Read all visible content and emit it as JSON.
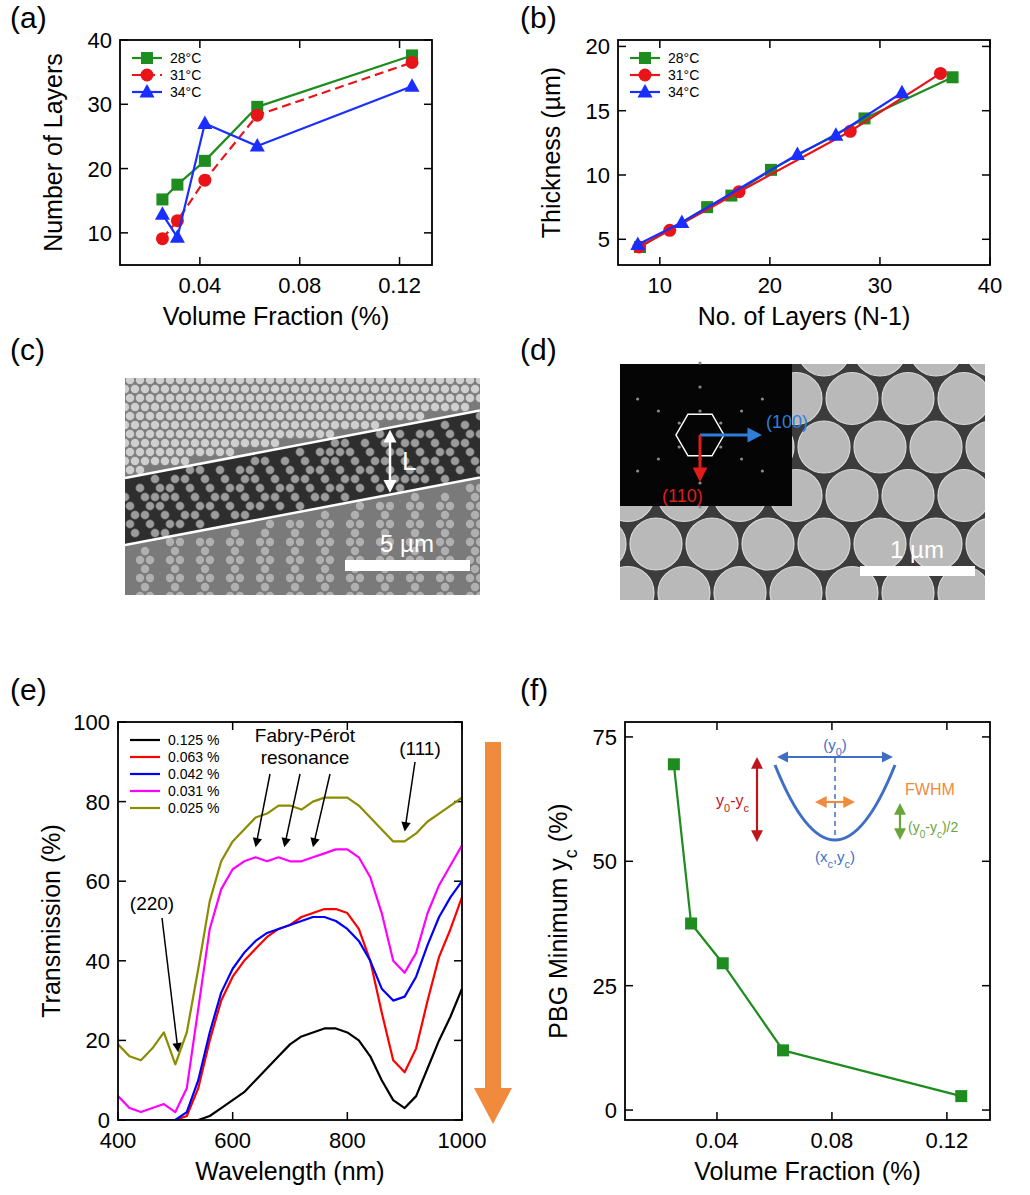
{
  "chart_data": [
    {
      "panel": "(a)",
      "type": "line",
      "xlabel": "Volume Fraction (%)",
      "ylabel": "Number of Layers",
      "xlim": [
        0.008,
        0.133
      ],
      "ylim": [
        5,
        40
      ],
      "xticks": [
        0.04,
        0.08,
        0.12
      ],
      "yticks": [
        10,
        20,
        30,
        40
      ],
      "legend": "upper left",
      "x": [
        0.025,
        0.031,
        0.042,
        0.063,
        0.125
      ],
      "series": [
        {
          "name": "28°C",
          "color": "#1e8c1e",
          "marker": "square",
          "line_style": "solid",
          "values": [
            15.2,
            17.5,
            21.2,
            29.6,
            37.6
          ]
        },
        {
          "name": "31°C",
          "color": "#e8141a",
          "marker": "circle",
          "line_style": "dashed",
          "values": [
            9.1,
            11.9,
            18.2,
            28.3,
            36.5
          ]
        },
        {
          "name": "34°C",
          "color": "#1a2eff",
          "marker": "triangle",
          "line_style": "solid",
          "values": [
            12.9,
            9.3,
            27.0,
            23.5,
            32.8
          ]
        }
      ]
    },
    {
      "panel": "(b)",
      "type": "line",
      "xlabel": "No. of Layers (N-1)",
      "ylabel": "Thickness (µm)",
      "xlim": [
        6.2,
        40
      ],
      "ylim": [
        3,
        20.5
      ],
      "xticks": [
        10,
        20,
        30,
        40
      ],
      "yticks": [
        5,
        10,
        15,
        20
      ],
      "legend": "upper left",
      "series": [
        {
          "name": "28°C",
          "color": "#1e8c1e",
          "marker": "square",
          "line_style": "solid",
          "x": [
            8.2,
            14.3,
            16.5,
            20.1,
            28.6,
            36.6
          ],
          "values": [
            4.4,
            7.5,
            8.4,
            10.4,
            14.4,
            17.6
          ]
        },
        {
          "name": "31°C",
          "color": "#e8141a",
          "marker": "circle",
          "line_style": "solid",
          "x": [
            8.1,
            10.9,
            17.2,
            27.3,
            35.5
          ],
          "values": [
            4.4,
            5.7,
            8.7,
            13.4,
            17.9
          ]
        },
        {
          "name": "34°C",
          "color": "#1a2eff",
          "marker": "triangle",
          "line_style": "solid",
          "x": [
            8.0,
            12.0,
            22.5,
            26.0,
            32.0
          ],
          "values": [
            4.6,
            6.3,
            11.6,
            13.1,
            16.4
          ]
        }
      ]
    },
    {
      "panel": "(e)",
      "type": "line",
      "xlabel": "Wavelength (nm)",
      "ylabel": "Transmission (%)",
      "xlim": [
        400,
        1000
      ],
      "ylim": [
        0,
        100
      ],
      "xticks": [
        400,
        600,
        800,
        1000
      ],
      "yticks": [
        0,
        20,
        40,
        60,
        80,
        100
      ],
      "legend": "upper left",
      "x": [
        400,
        420,
        440,
        460,
        480,
        500,
        520,
        540,
        560,
        580,
        600,
        620,
        640,
        660,
        680,
        700,
        720,
        740,
        760,
        780,
        800,
        820,
        840,
        860,
        880,
        900,
        920,
        940,
        960,
        980,
        1000
      ],
      "series": [
        {
          "name": "0.125 %",
          "color": "#000000",
          "marker": "none",
          "line_style": "solid",
          "values": [
            0,
            0,
            0,
            0,
            0,
            0,
            0,
            0,
            1,
            3,
            5,
            7,
            10,
            13,
            16,
            19,
            21,
            22,
            23,
            23,
            22,
            20,
            16,
            10,
            5,
            3,
            6,
            13,
            20,
            26,
            33
          ]
        },
        {
          "name": "0.063 %",
          "color": "#ff0000",
          "marker": "none",
          "line_style": "solid",
          "values": [
            0,
            0,
            0,
            0,
            0,
            0,
            1,
            8,
            20,
            30,
            36,
            40,
            43,
            46,
            48,
            49,
            51,
            52,
            53,
            53,
            52,
            48,
            40,
            27,
            15,
            12,
            18,
            30,
            41,
            48,
            56
          ]
        },
        {
          "name": "0.042 %",
          "color": "#0000ff",
          "marker": "none",
          "line_style": "solid",
          "values": [
            0,
            0,
            0,
            0,
            0,
            0,
            2,
            10,
            22,
            32,
            38,
            42,
            45,
            47,
            48,
            49,
            50,
            51,
            51,
            50,
            48,
            45,
            40,
            33,
            30,
            31,
            36,
            44,
            51,
            56,
            60
          ]
        },
        {
          "name": "0.031 %",
          "color": "#ff00ff",
          "marker": "none",
          "line_style": "solid",
          "values": [
            6,
            3,
            2,
            3,
            4,
            2,
            8,
            28,
            48,
            58,
            63,
            65,
            66,
            65,
            66,
            65,
            65,
            66,
            67,
            68,
            68,
            66,
            61,
            52,
            40,
            37,
            42,
            52,
            59,
            64,
            69
          ]
        },
        {
          "name": "0.025 %",
          "color": "#8c8c00",
          "marker": "none",
          "line_style": "solid",
          "values": [
            19,
            16,
            15,
            18,
            22,
            14,
            22,
            38,
            55,
            65,
            70,
            73,
            76,
            77,
            79,
            79,
            78,
            80,
            81,
            81,
            81,
            79,
            76,
            73,
            70,
            70,
            72,
            75,
            77,
            79,
            81
          ]
        }
      ],
      "annotations": [
        {
          "text": [
            "Fabry-Pérot",
            "resonance"
          ],
          "points": [
            {
              "x": 640,
              "y": 67
            },
            {
              "x": 690,
              "y": 67
            },
            {
              "x": 740,
              "y": 67
            }
          ]
        },
        {
          "text": [
            "(111)"
          ],
          "points": [
            {
              "x": 900,
              "y": 71
            }
          ]
        },
        {
          "text": [
            "(220)"
          ],
          "points": [
            {
              "x": 505,
              "y": 15
            }
          ]
        }
      ]
    },
    {
      "panel": "(f)",
      "type": "line",
      "xlabel": "Volume Fraction (%)",
      "ylabel": "PBG Minimum yc (%)",
      "xlim": [
        0.008,
        0.135
      ],
      "ylim": [
        -2,
        78
      ],
      "xticks": [
        0.04,
        0.08,
        0.12
      ],
      "yticks": [
        0,
        25,
        50,
        75
      ],
      "x": [
        0.025,
        0.031,
        0.042,
        0.063,
        0.125
      ],
      "series": [
        {
          "color": "#1e8c1e",
          "marker": "square",
          "line_style": "solid",
          "values": [
            69.5,
            37.5,
            29.5,
            12,
            2.8
          ]
        }
      ],
      "inset_labels": [
        "(y0)",
        "y0-yc",
        "FWHM",
        "(y0-yc)/2",
        "(xc,yc)"
      ]
    }
  ],
  "images": [
    {
      "panel": "(c)",
      "label": "L",
      "scale_bar": "5 µm"
    },
    {
      "panel": "(d)",
      "scale_bar": "1 µm",
      "fft_labels": [
        "(100)",
        "(110)"
      ]
    }
  ]
}
